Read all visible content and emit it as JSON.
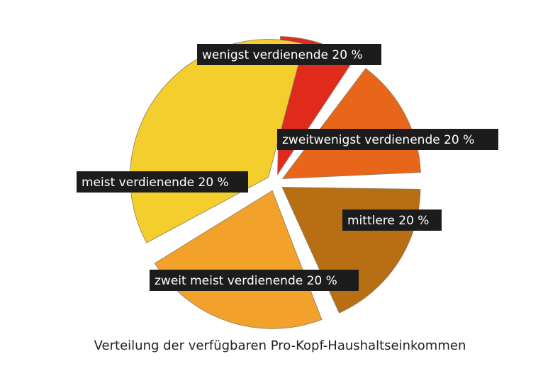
{
  "chart_data": {
    "type": "pie",
    "title": "",
    "caption": "Verteilung der verfügbaren Pro-Kopf-Haushaltseinkommen",
    "exploded": true,
    "slices": [
      {
        "label": "wenigst verdienende 20 %",
        "value": 9,
        "color": "#e02a1c"
      },
      {
        "label": "zweitwenigst verdienende 20 %",
        "value": 14,
        "color": "#e8661a"
      },
      {
        "label": "mittlere 20 %",
        "value": 18,
        "color": "#b86f14"
      },
      {
        "label": "zweit meist verdienende 20 %",
        "value": 22,
        "color": "#f2a22b"
      },
      {
        "label": "meist verdienende 20 %",
        "value": 37,
        "color": "#f3ce2c"
      }
    ]
  }
}
